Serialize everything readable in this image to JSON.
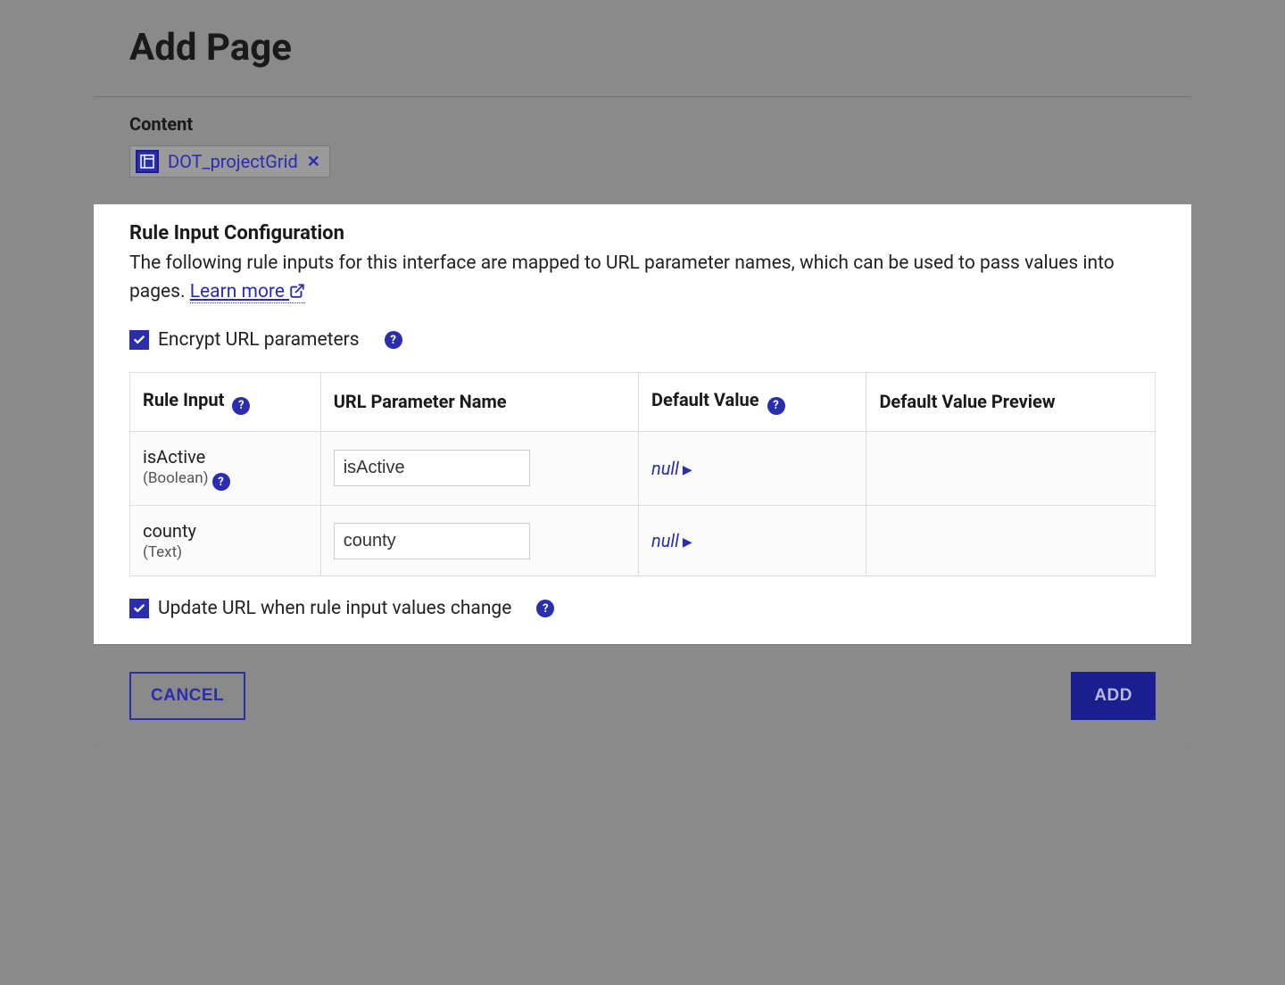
{
  "header": {
    "title": "Add Page"
  },
  "content": {
    "label": "Content",
    "chip_label": "DOT_projectGrid"
  },
  "config": {
    "title": "Rule Input Configuration",
    "description_prefix": "The following rule inputs for this interface are mapped to URL parameter names, which can be used to pass values into pages. ",
    "learn_more": "Learn more",
    "encrypt_label": "Encrypt URL parameters",
    "update_url_label": "Update URL when rule input values change",
    "table": {
      "columns": {
        "rule_input": "Rule Input",
        "url_param": "URL Parameter Name",
        "default_value": "Default Value",
        "default_preview": "Default Value Preview"
      },
      "rows": [
        {
          "name": "isActive",
          "type": "(Boolean)",
          "has_type_help": true,
          "param": "isActive",
          "default": "null",
          "preview": ""
        },
        {
          "name": "county",
          "type": "(Text)",
          "has_type_help": false,
          "param": "county",
          "default": "null",
          "preview": ""
        }
      ]
    }
  },
  "footer": {
    "cancel": "CANCEL",
    "add": "ADD"
  },
  "colors": {
    "primary": "#2a2db0",
    "primary_dark": "#1b1e8e",
    "overlay": "#8a8a8a"
  }
}
